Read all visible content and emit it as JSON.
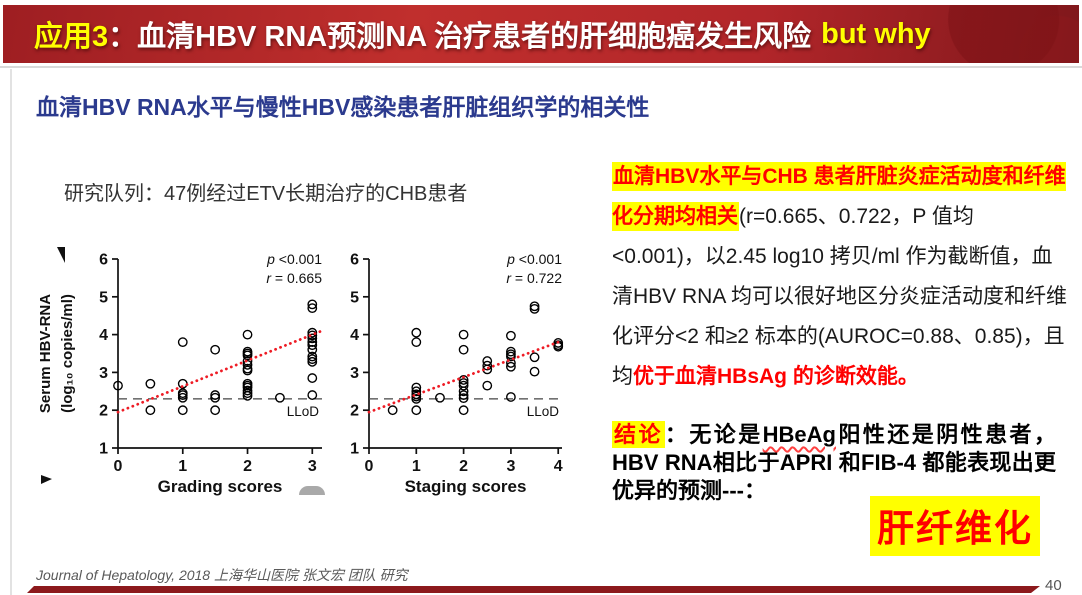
{
  "header": {
    "badge": "应用3",
    "title": "：血清HBV RNA预测NA 治疗患者的肝细胞癌发生风险",
    "emphasis": "but why"
  },
  "subtitle": "血清HBV RNA水平与慢性HBV感染患者肝脏组织学的相关性",
  "cohort": "研究队列：47例经过ETV长期治疗的CHB患者",
  "chart_data": [
    {
      "type": "scatter",
      "title": "",
      "xlabel": "Grading scores",
      "ylabel": [
        "Serum HBV-RNA",
        "(log₁₀ copies/ml)"
      ],
      "xlim": [
        0,
        3.15
      ],
      "ylim": [
        1,
        6
      ],
      "xticks": [
        0,
        1,
        2,
        3
      ],
      "yticks": [
        1,
        2,
        3,
        4,
        5,
        6
      ],
      "grid": false,
      "marker": "open-circle",
      "annotation": [
        "p <0.001",
        "r = 0.665"
      ],
      "llod": {
        "y": 2.3,
        "label": "LLoD"
      },
      "trend": {
        "x": [
          0,
          3.15
        ],
        "y": [
          1.95,
          4.1
        ],
        "color": "#ee1c25",
        "style": "dotted"
      },
      "points": [
        [
          0,
          2.65
        ],
        [
          0.5,
          2.7
        ],
        [
          0.5,
          2.0
        ],
        [
          1,
          3.8
        ],
        [
          1,
          2.7
        ],
        [
          1,
          2.45
        ],
        [
          1,
          2.4
        ],
        [
          1,
          2.33
        ],
        [
          1,
          2.0
        ],
        [
          1.5,
          3.6
        ],
        [
          1.5,
          2.4
        ],
        [
          1.5,
          2.33
        ],
        [
          1.5,
          2.0
        ],
        [
          2,
          4.0
        ],
        [
          2,
          3.55
        ],
        [
          2,
          3.5
        ],
        [
          2,
          3.45
        ],
        [
          2,
          3.3
        ],
        [
          2,
          3.2
        ],
        [
          2,
          3.1
        ],
        [
          2,
          3.05
        ],
        [
          2,
          2.7
        ],
        [
          2,
          2.65
        ],
        [
          2,
          2.6
        ],
        [
          2,
          2.52
        ],
        [
          2,
          2.45
        ],
        [
          2,
          2.38
        ],
        [
          2.5,
          2.33
        ],
        [
          3,
          4.8
        ],
        [
          3,
          4.7
        ],
        [
          3,
          4.05
        ],
        [
          3,
          3.98
        ],
        [
          3,
          3.9
        ],
        [
          3,
          3.8
        ],
        [
          3,
          3.72
        ],
        [
          3,
          3.6
        ],
        [
          3,
          3.42
        ],
        [
          3,
          3.35
        ],
        [
          3,
          3.28
        ],
        [
          3,
          2.85
        ],
        [
          3,
          2.4
        ]
      ]
    },
    {
      "type": "scatter",
      "title": "",
      "xlabel": "Staging scores",
      "ylabel": [],
      "xlim": [
        0,
        4.08
      ],
      "ylim": [
        1,
        6
      ],
      "xticks": [
        0,
        1,
        2,
        3,
        4
      ],
      "yticks": [
        1,
        2,
        3,
        4,
        5,
        6
      ],
      "grid": false,
      "marker": "open-circle",
      "annotation": [
        "p <0.001",
        "r = 0.722"
      ],
      "llod": {
        "y": 2.3,
        "label": "LLoD"
      },
      "trend": {
        "x": [
          0,
          4.0
        ],
        "y": [
          1.95,
          3.8
        ],
        "color": "#ee1c25",
        "style": "dotted"
      },
      "points": [
        [
          0.5,
          2.0
        ],
        [
          1,
          4.05
        ],
        [
          1,
          3.8
        ],
        [
          1,
          2.6
        ],
        [
          1,
          2.5
        ],
        [
          1,
          2.42
        ],
        [
          1,
          2.36
        ],
        [
          1,
          2.3
        ],
        [
          1,
          2.0
        ],
        [
          1.5,
          2.33
        ],
        [
          2,
          4.0
        ],
        [
          2,
          3.6
        ],
        [
          2,
          2.8
        ],
        [
          2,
          2.72
        ],
        [
          2,
          2.65
        ],
        [
          2,
          2.5
        ],
        [
          2,
          2.4
        ],
        [
          2,
          2.32
        ],
        [
          2,
          2.0
        ],
        [
          2.5,
          3.3
        ],
        [
          2.5,
          3.18
        ],
        [
          2.5,
          3.08
        ],
        [
          2.5,
          2.65
        ],
        [
          3,
          3.97
        ],
        [
          3,
          3.55
        ],
        [
          3,
          3.48
        ],
        [
          3,
          3.42
        ],
        [
          3,
          3.25
        ],
        [
          3,
          3.15
        ],
        [
          3,
          2.35
        ],
        [
          3.5,
          4.75
        ],
        [
          3.5,
          4.68
        ],
        [
          3.5,
          3.4
        ],
        [
          3.5,
          3.02
        ],
        [
          4,
          3.78
        ],
        [
          4,
          3.72
        ],
        [
          4,
          3.68
        ]
      ]
    }
  ],
  "findings": {
    "segments": [
      {
        "style": "hl",
        "text": "血清HBV水平与CHB 患者肝脏炎症活动度和纤维化分期均相关"
      },
      {
        "style": "plain",
        "text": "(r=0.665、0.722，P 值均 <0.001)，以2.45 log10 拷贝/ml 作为截断值，血清HBV RNA 均可以很好地区分炎症活动度和纤维化评分<2 和≥2 标本的(AUROC=0.88、0.85)，且均"
      },
      {
        "style": "red",
        "text": "优于血清HBsAg 的诊断效能。"
      }
    ]
  },
  "conclusion": {
    "segments": [
      {
        "style": "hl",
        "text": "结论"
      },
      {
        "style": "bold",
        "text": "：无论是"
      },
      {
        "style": "squiggle",
        "text": "HBeAg"
      },
      {
        "style": "bold",
        "text": "阳性还是阴性患者，HBV RNA相比于APRI 和FIB-4 都能表现出更优异的预测---："
      }
    ],
    "final": "肝纤维化"
  },
  "footer": {
    "citation": "Journal of Hepatology, 2018 上海华山医院 张文宏 团队 研究",
    "page": "40"
  },
  "colors": {
    "banner_red": "#b2262a",
    "accent_yellow": "#ffff00",
    "subtitle_blue": "#2b3a8e",
    "text_red": "#ff0000",
    "trend_red": "#ee1c25",
    "bottom_bar_red": "#8c191c"
  }
}
